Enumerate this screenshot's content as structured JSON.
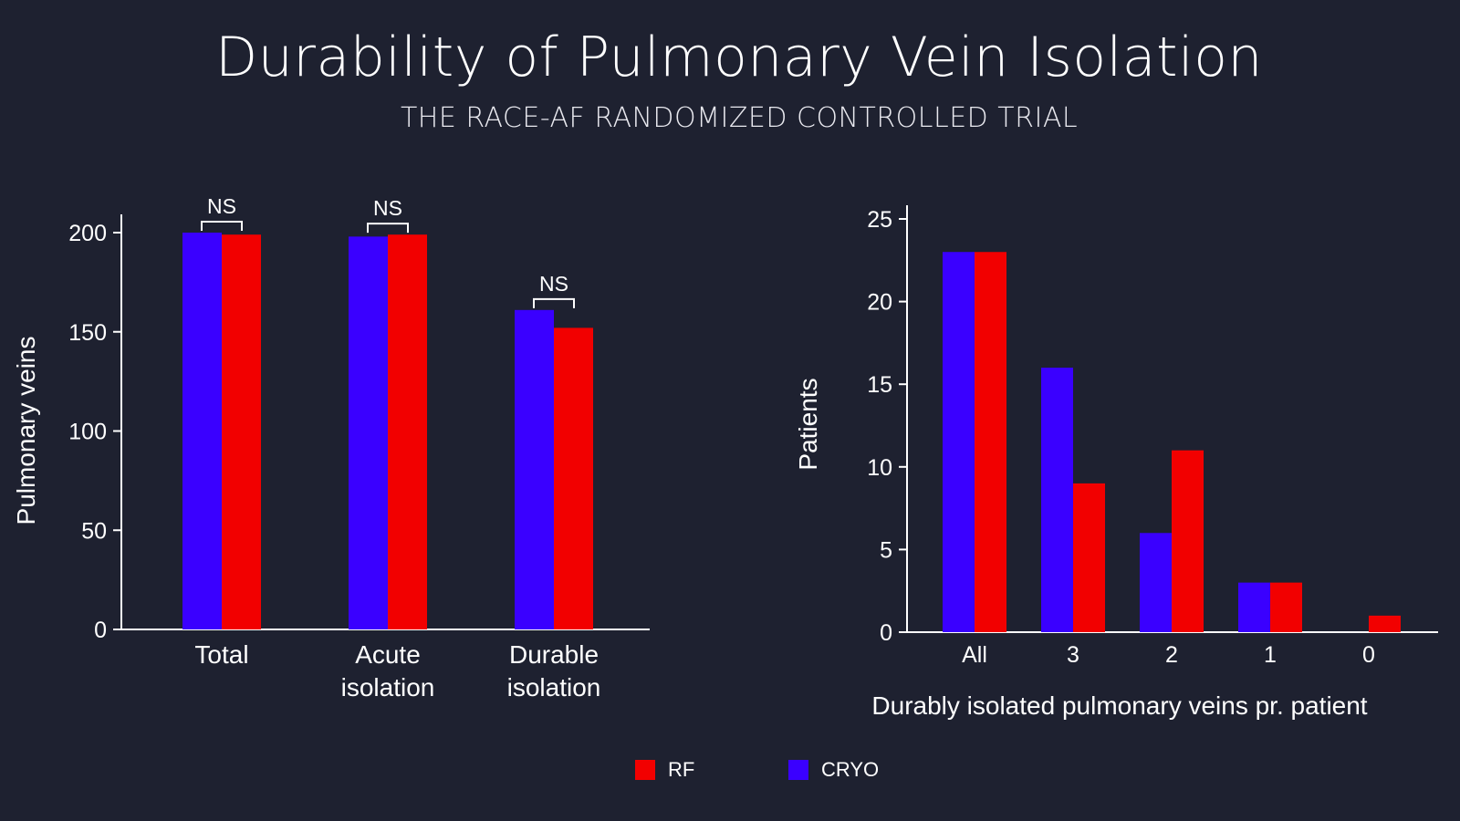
{
  "title": "Durability of Pulmonary Vein Isolation",
  "subtitle": "THE RACE-AF RANDOMIZED CONTROLLED TRIAL",
  "colors": {
    "background": "#1e2130",
    "rf": "#f20000",
    "cryo": "#3a00ff"
  },
  "legend": {
    "rf_label": "RF",
    "cryo_label": "CRYO"
  },
  "chart_data": [
    {
      "type": "bar",
      "title": "",
      "xlabel": "",
      "ylabel": "Pulmonary veins",
      "ylim": [
        0,
        200
      ],
      "yticks": [
        "0",
        "50",
        "100",
        "150",
        "200"
      ],
      "categories": [
        [
          "Total"
        ],
        [
          "Acute",
          "isolation"
        ],
        [
          "Durable",
          "isolation"
        ]
      ],
      "series": [
        {
          "name": "CRYO",
          "values": [
            200,
            198,
            161
          ]
        },
        {
          "name": "RF",
          "values": [
            199,
            199,
            152
          ]
        }
      ],
      "annotations": [
        "NS",
        "NS",
        "NS"
      ],
      "legend": "bottom"
    },
    {
      "type": "bar",
      "title": "",
      "xlabel": "Durably isolated pulmonary veins pr. patient",
      "ylabel": "Patients",
      "ylim": [
        0,
        25
      ],
      "yticks": [
        "0",
        "5",
        "10",
        "15",
        "20",
        "25"
      ],
      "categories": [
        "All",
        "3",
        "2",
        "1",
        "0"
      ],
      "series": [
        {
          "name": "CRYO",
          "values": [
            23,
            16,
            6,
            3,
            0
          ]
        },
        {
          "name": "RF",
          "values": [
            23,
            9,
            11,
            3,
            1
          ]
        }
      ],
      "legend": "bottom"
    }
  ]
}
